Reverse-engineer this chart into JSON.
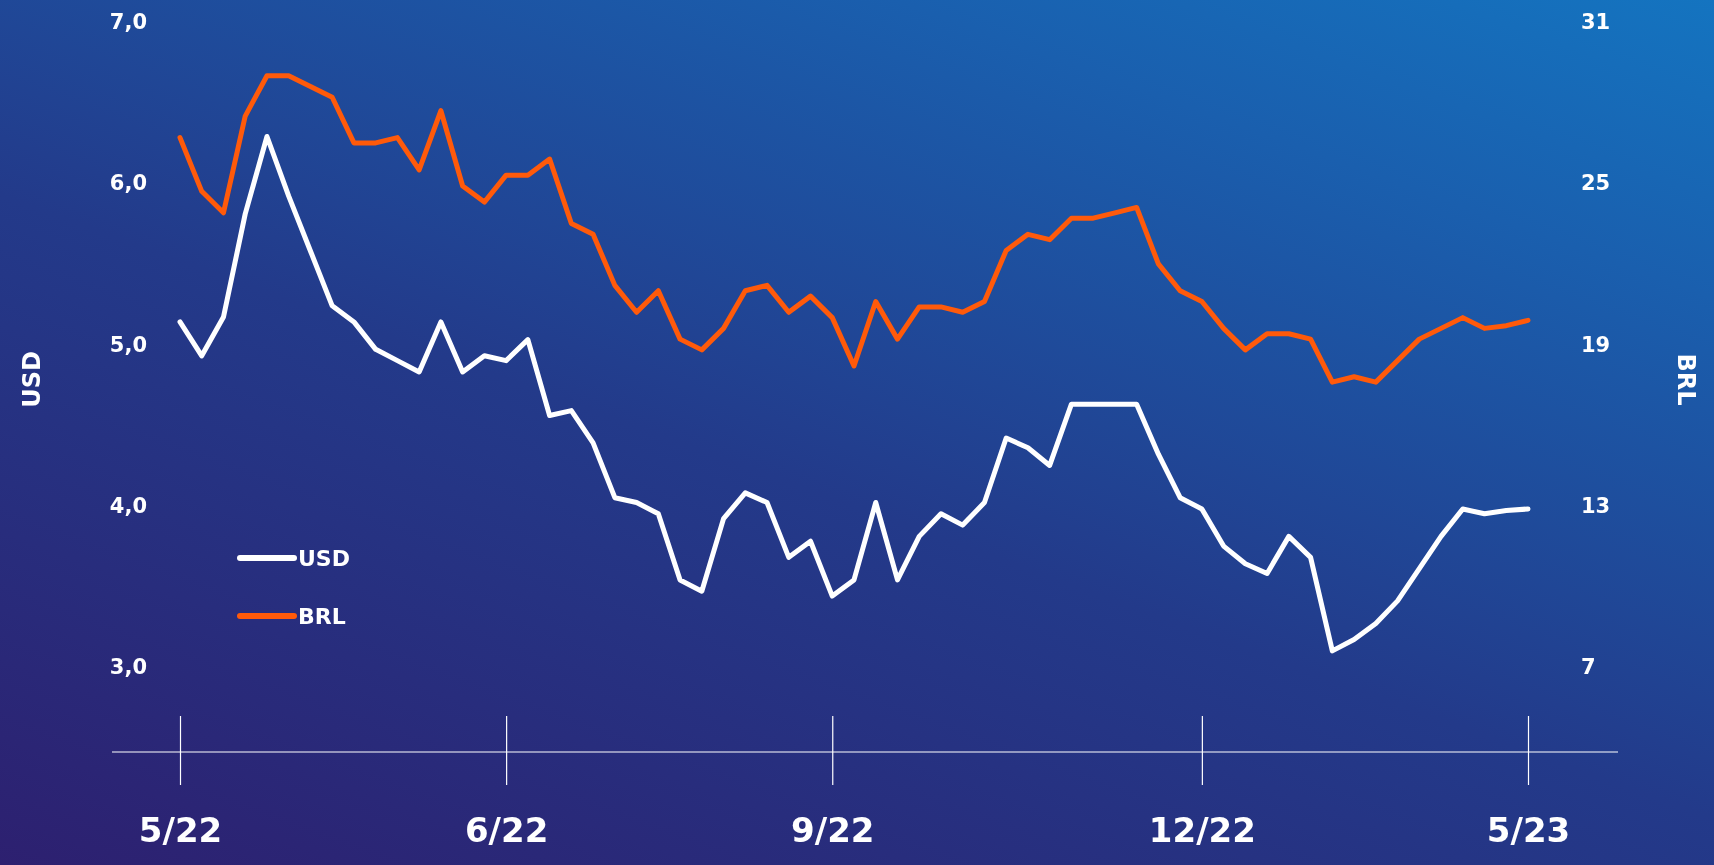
{
  "chart_data": {
    "type": "line",
    "ylabel": "USD",
    "y2label": "BRL",
    "categories": [
      "5/22",
      null,
      null,
      null,
      null,
      null,
      null,
      null,
      null,
      null,
      null,
      null,
      null,
      null,
      null,
      "6/22",
      null,
      null,
      null,
      null,
      null,
      null,
      null,
      null,
      null,
      null,
      null,
      null,
      null,
      null,
      "9/22",
      null,
      null,
      null,
      null,
      null,
      null,
      null,
      null,
      null,
      null,
      null,
      null,
      null,
      null,
      null,
      null,
      "12/22",
      null,
      null,
      null,
      null,
      null,
      null,
      null,
      null,
      null,
      null,
      null,
      null,
      null,
      null,
      "5/23"
    ],
    "series": [
      {
        "name": "USD",
        "color": "#ffffff",
        "values": [
          5.14,
          4.93,
          5.17,
          5.81,
          6.29,
          5.92,
          5.58,
          5.24,
          5.14,
          4.97,
          4.9,
          4.83,
          5.14,
          4.83,
          4.93,
          4.9,
          5.03,
          4.56,
          4.59,
          4.39,
          4.05,
          4.02,
          3.95,
          3.54,
          3.47,
          3.92,
          4.08,
          4.02,
          3.68,
          3.78,
          3.44,
          3.54,
          4.02,
          3.54,
          3.81,
          3.95,
          3.88,
          4.02,
          4.42,
          4.36,
          4.25,
          4.63,
          4.63,
          4.63,
          4.63,
          4.32,
          4.05,
          3.98,
          3.75,
          3.64,
          3.58,
          3.81,
          3.68,
          3.1,
          3.17,
          3.27,
          3.41,
          3.61,
          3.81,
          3.98,
          3.95,
          3.97,
          3.98
        ]
      },
      {
        "name": "BRL",
        "color": "#ff5a0a",
        "axis": "y2",
        "values": [
          26.7,
          24.7,
          23.9,
          27.5,
          29.0,
          29.0,
          28.6,
          28.2,
          26.5,
          26.5,
          26.7,
          25.5,
          27.7,
          24.9,
          24.3,
          25.3,
          25.3,
          25.9,
          23.5,
          23.1,
          21.2,
          20.2,
          21.0,
          19.2,
          18.8,
          19.6,
          21.0,
          21.2,
          20.2,
          20.8,
          20.0,
          18.2,
          20.6,
          19.2,
          20.4,
          20.4,
          20.2,
          20.6,
          22.5,
          23.1,
          22.9,
          23.7,
          23.7,
          23.9,
          24.1,
          22.0,
          21.0,
          20.6,
          19.6,
          18.8,
          19.4,
          19.4,
          19.2,
          17.6,
          17.8,
          17.6,
          18.4,
          19.2,
          19.6,
          20.0,
          19.6,
          19.7,
          19.9
        ]
      }
    ],
    "ylim": [
      3,
      7
    ],
    "yticks": [
      {
        "value": 3,
        "label": "3,0"
      },
      {
        "value": 4,
        "label": "4,0"
      },
      {
        "value": 5,
        "label": "5,0"
      },
      {
        "value": 6,
        "label": "6,0"
      },
      {
        "value": 7,
        "label": "7,0"
      }
    ],
    "y2lim": [
      7,
      31
    ],
    "y2ticks": [
      7,
      13,
      19,
      25,
      31
    ],
    "legend": "bottom left",
    "grid": false,
    "marker": "none",
    "line_style": "solid"
  }
}
